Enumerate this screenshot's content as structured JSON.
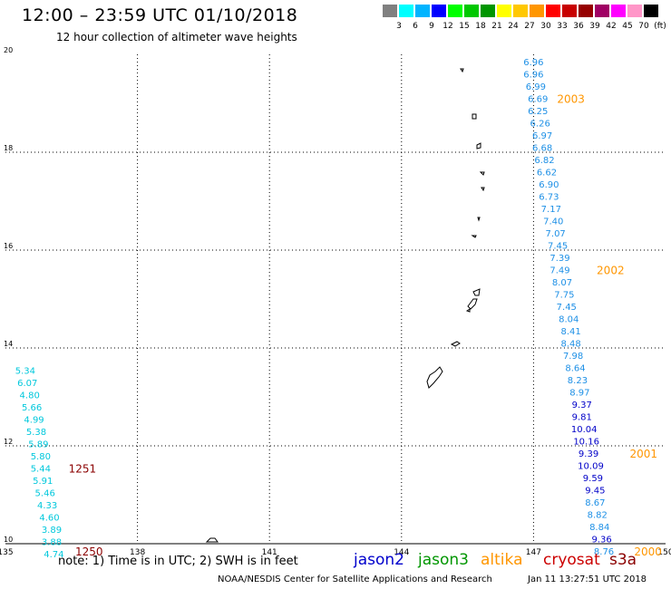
{
  "header": {
    "title": "12:00 – 23:59 UTC 01/10/2018",
    "subtitle": "12 hour collection of altimeter wave heights"
  },
  "color_scale": {
    "unit_label": "(ft)",
    "swatches": [
      {
        "color": "#808080",
        "label": "3"
      },
      {
        "color": "#00ffff",
        "label": "6"
      },
      {
        "color": "#00b4ff",
        "label": "9"
      },
      {
        "color": "#0000ff",
        "label": "12"
      },
      {
        "color": "#00ff00",
        "label": "15"
      },
      {
        "color": "#00c800",
        "label": "18"
      },
      {
        "color": "#009600",
        "label": "21"
      },
      {
        "color": "#ffff00",
        "label": "24"
      },
      {
        "color": "#ffc800",
        "label": "27"
      },
      {
        "color": "#ff9600",
        "label": "30"
      },
      {
        "color": "#ff0000",
        "label": "33"
      },
      {
        "color": "#c80000",
        "label": "36"
      },
      {
        "color": "#960000",
        "label": "39"
      },
      {
        "color": "#a00064",
        "label": "42"
      },
      {
        "color": "#ff00ff",
        "label": "45"
      },
      {
        "color": "#ff96c8",
        "label": "70"
      },
      {
        "color": "#000000",
        "label": ""
      }
    ]
  },
  "chart_data": {
    "type": "scatter",
    "xlim": [
      135,
      150
    ],
    "ylim": [
      10,
      20
    ],
    "x_ticks": [
      "135",
      "138",
      "141",
      "144",
      "147",
      "150"
    ],
    "y_ticks": [
      "10",
      "12",
      "14",
      "16",
      "18",
      "20"
    ],
    "grid": true,
    "colors": {
      "light": "#00c8dc",
      "mid": "#1e90e6",
      "dark": "#0000c8",
      "time_orange": "#ff9600",
      "time_dark": "#8b0000"
    },
    "series": [
      {
        "name": "altika",
        "points": [
          {
            "x": 147.0,
            "y": 19.85,
            "v": "6.96",
            "c": "mid"
          },
          {
            "x": 147.0,
            "y": 19.6,
            "v": "6.96",
            "c": "mid"
          },
          {
            "x": 147.05,
            "y": 19.35,
            "v": "6.99",
            "c": "mid"
          },
          {
            "x": 147.1,
            "y": 19.1,
            "v": "6.69",
            "c": "mid"
          },
          {
            "x": 147.1,
            "y": 18.85,
            "v": "6.25",
            "c": "mid"
          },
          {
            "x": 147.15,
            "y": 18.6,
            "v": "6.26",
            "c": "mid"
          },
          {
            "x": 147.2,
            "y": 18.35,
            "v": "6.97",
            "c": "mid"
          },
          {
            "x": 147.2,
            "y": 18.1,
            "v": "6.68",
            "c": "mid"
          },
          {
            "x": 147.25,
            "y": 17.85,
            "v": "6.82",
            "c": "mid"
          },
          {
            "x": 147.3,
            "y": 17.6,
            "v": "6.62",
            "c": "mid"
          },
          {
            "x": 147.35,
            "y": 17.35,
            "v": "6.90",
            "c": "mid"
          },
          {
            "x": 147.35,
            "y": 17.1,
            "v": "6.73",
            "c": "mid"
          },
          {
            "x": 147.4,
            "y": 16.85,
            "v": "7.17",
            "c": "mid"
          },
          {
            "x": 147.45,
            "y": 16.6,
            "v": "7.40",
            "c": "mid"
          },
          {
            "x": 147.5,
            "y": 16.35,
            "v": "7.07",
            "c": "mid"
          },
          {
            "x": 147.55,
            "y": 16.1,
            "v": "7.45",
            "c": "mid"
          },
          {
            "x": 147.6,
            "y": 15.85,
            "v": "7.39",
            "c": "mid"
          },
          {
            "x": 147.6,
            "y": 15.6,
            "v": "7.49",
            "c": "mid"
          },
          {
            "x": 147.65,
            "y": 15.35,
            "v": "8.07",
            "c": "mid"
          },
          {
            "x": 147.7,
            "y": 15.1,
            "v": "7.75",
            "c": "mid"
          },
          {
            "x": 147.75,
            "y": 14.85,
            "v": "7.45",
            "c": "mid"
          },
          {
            "x": 147.8,
            "y": 14.6,
            "v": "8.04",
            "c": "mid"
          },
          {
            "x": 147.85,
            "y": 14.35,
            "v": "8.41",
            "c": "mid"
          },
          {
            "x": 147.85,
            "y": 14.1,
            "v": "8.48",
            "c": "mid"
          },
          {
            "x": 147.9,
            "y": 13.85,
            "v": "7.98",
            "c": "mid"
          },
          {
            "x": 147.95,
            "y": 13.6,
            "v": "8.64",
            "c": "mid"
          },
          {
            "x": 148.0,
            "y": 13.35,
            "v": "8.23",
            "c": "mid"
          },
          {
            "x": 148.05,
            "y": 13.1,
            "v": "8.97",
            "c": "mid"
          },
          {
            "x": 148.1,
            "y": 12.85,
            "v": "9.37",
            "c": "dark"
          },
          {
            "x": 148.1,
            "y": 12.6,
            "v": "9.81",
            "c": "dark"
          },
          {
            "x": 148.15,
            "y": 12.35,
            "v": "10.04",
            "c": "dark"
          },
          {
            "x": 148.2,
            "y": 12.1,
            "v": "10.16",
            "c": "dark"
          },
          {
            "x": 148.25,
            "y": 11.85,
            "v": "9.39",
            "c": "dark"
          },
          {
            "x": 148.3,
            "y": 11.6,
            "v": "10.09",
            "c": "dark"
          },
          {
            "x": 148.35,
            "y": 11.35,
            "v": "9.59",
            "c": "dark"
          },
          {
            "x": 148.4,
            "y": 11.1,
            "v": "9.45",
            "c": "dark"
          },
          {
            "x": 148.4,
            "y": 10.85,
            "v": "8.67",
            "c": "mid"
          },
          {
            "x": 148.45,
            "y": 10.6,
            "v": "8.82",
            "c": "mid"
          },
          {
            "x": 148.5,
            "y": 10.35,
            "v": "8.84",
            "c": "mid"
          },
          {
            "x": 148.55,
            "y": 10.1,
            "v": "9.36",
            "c": "dark"
          },
          {
            "x": 148.6,
            "y": 9.85,
            "v": "8.76",
            "c": "mid"
          }
        ]
      },
      {
        "name": "cryosat",
        "points": [
          {
            "x": 135.45,
            "y": 13.55,
            "v": "5.34",
            "c": "light"
          },
          {
            "x": 135.5,
            "y": 13.3,
            "v": "6.07",
            "c": "light"
          },
          {
            "x": 135.55,
            "y": 13.05,
            "v": "4.80",
            "c": "light"
          },
          {
            "x": 135.6,
            "y": 12.8,
            "v": "5.66",
            "c": "light"
          },
          {
            "x": 135.65,
            "y": 12.55,
            "v": "4.99",
            "c": "light"
          },
          {
            "x": 135.7,
            "y": 12.3,
            "v": "5.38",
            "c": "light"
          },
          {
            "x": 135.75,
            "y": 12.05,
            "v": "5.89",
            "c": "light"
          },
          {
            "x": 135.8,
            "y": 11.8,
            "v": "5.80",
            "c": "light"
          },
          {
            "x": 135.8,
            "y": 11.55,
            "v": "5.44",
            "c": "light"
          },
          {
            "x": 135.85,
            "y": 11.3,
            "v": "5.91",
            "c": "light"
          },
          {
            "x": 135.9,
            "y": 11.05,
            "v": "5.46",
            "c": "light"
          },
          {
            "x": 135.95,
            "y": 10.8,
            "v": "4.33",
            "c": "light"
          },
          {
            "x": 136.0,
            "y": 10.55,
            "v": "4.60",
            "c": "light"
          },
          {
            "x": 136.05,
            "y": 10.3,
            "v": "3.89",
            "c": "light"
          },
          {
            "x": 136.05,
            "y": 10.05,
            "v": "3.88",
            "c": "light"
          },
          {
            "x": 136.1,
            "y": 9.8,
            "v": "4.74",
            "c": "light"
          }
        ]
      }
    ],
    "time_labels": [
      {
        "x": 147.85,
        "y": 19.1,
        "text": "2003",
        "c": "time_orange"
      },
      {
        "x": 148.75,
        "y": 15.6,
        "text": "2002",
        "c": "time_orange"
      },
      {
        "x": 149.5,
        "y": 11.85,
        "text": "2001",
        "c": "time_orange"
      },
      {
        "x": 149.6,
        "y": 9.85,
        "text": "2000",
        "c": "time_orange"
      },
      {
        "x": 136.75,
        "y": 11.55,
        "text": "1251",
        "c": "time_dark"
      },
      {
        "x": 136.9,
        "y": 9.85,
        "text": "1250",
        "c": "time_dark"
      }
    ]
  },
  "footer": {
    "note": "note: 1) Time is in UTC; 2) SWH is in feet",
    "credit": "NOAA/NESDIS Center for Satellite Applications and Research",
    "timestamp": "Jan 11 13:27:51 UTC 2018",
    "satellites": [
      {
        "name": "jason2",
        "color": "#0000cc"
      },
      {
        "name": "jason3",
        "color": "#009600"
      },
      {
        "name": "altika",
        "color": "#ff9600"
      },
      {
        "name": "cryosat",
        "color": "#cc0000"
      },
      {
        "name": "s3a",
        "color": "#8b0000"
      }
    ]
  }
}
